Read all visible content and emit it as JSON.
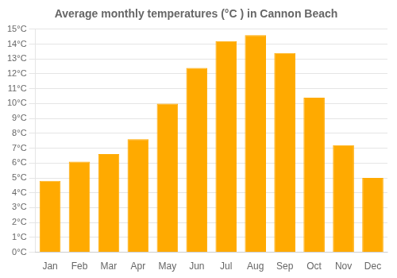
{
  "chart_data": {
    "type": "bar",
    "title": "Average monthly temperatures (°C ) in Cannon Beach",
    "categories": [
      "Jan",
      "Feb",
      "Mar",
      "Apr",
      "May",
      "Jun",
      "Jul",
      "Aug",
      "Sep",
      "Oct",
      "Nov",
      "Dec"
    ],
    "values": [
      4.8,
      6.1,
      6.6,
      7.6,
      10.0,
      12.4,
      14.2,
      14.6,
      13.4,
      10.4,
      7.2,
      5.0
    ],
    "color": "#FFAA00",
    "ylim": [
      0,
      15
    ],
    "yticks": [
      {
        "value": 0,
        "label": "0°C"
      },
      {
        "value": 1,
        "label": "1°C"
      },
      {
        "value": 2,
        "label": "2°C"
      },
      {
        "value": 3,
        "label": "3°C"
      },
      {
        "value": 4,
        "label": "4°C"
      },
      {
        "value": 5,
        "label": "5°C"
      },
      {
        "value": 6,
        "label": "6°C"
      },
      {
        "value": 7,
        "label": "7°C"
      },
      {
        "value": 8,
        "label": "8°C"
      },
      {
        "value": 9,
        "label": "9°C"
      },
      {
        "value": 10,
        "label": "10°C"
      },
      {
        "value": 11,
        "label": "11°C"
      },
      {
        "value": 12,
        "label": "12°C"
      },
      {
        "value": 13,
        "label": "13°C"
      },
      {
        "value": 14,
        "label": "14°C"
      },
      {
        "value": 15,
        "label": "15°C"
      }
    ],
    "grid": true
  }
}
